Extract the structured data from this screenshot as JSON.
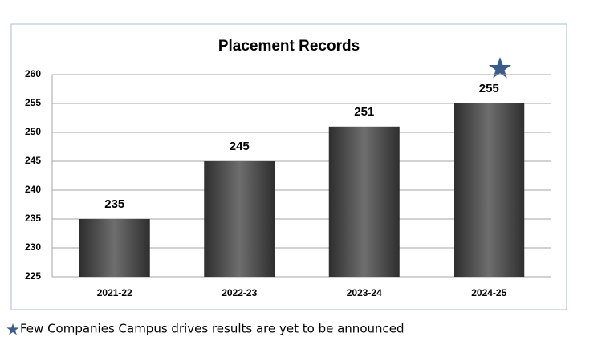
{
  "chart_data": {
    "type": "bar",
    "title": "Placement Records",
    "categories": [
      "2021-22",
      "2022-23",
      "2023-24",
      "2024-25"
    ],
    "values": [
      235,
      245,
      251,
      255
    ],
    "color": "#6e6e6e",
    "ylim": [
      225,
      260
    ],
    "yticks": [
      225,
      230,
      235,
      240,
      245,
      250,
      255,
      260
    ],
    "grid": true,
    "footnote": "Few Companies Campus drives results are yet to be announced"
  }
}
